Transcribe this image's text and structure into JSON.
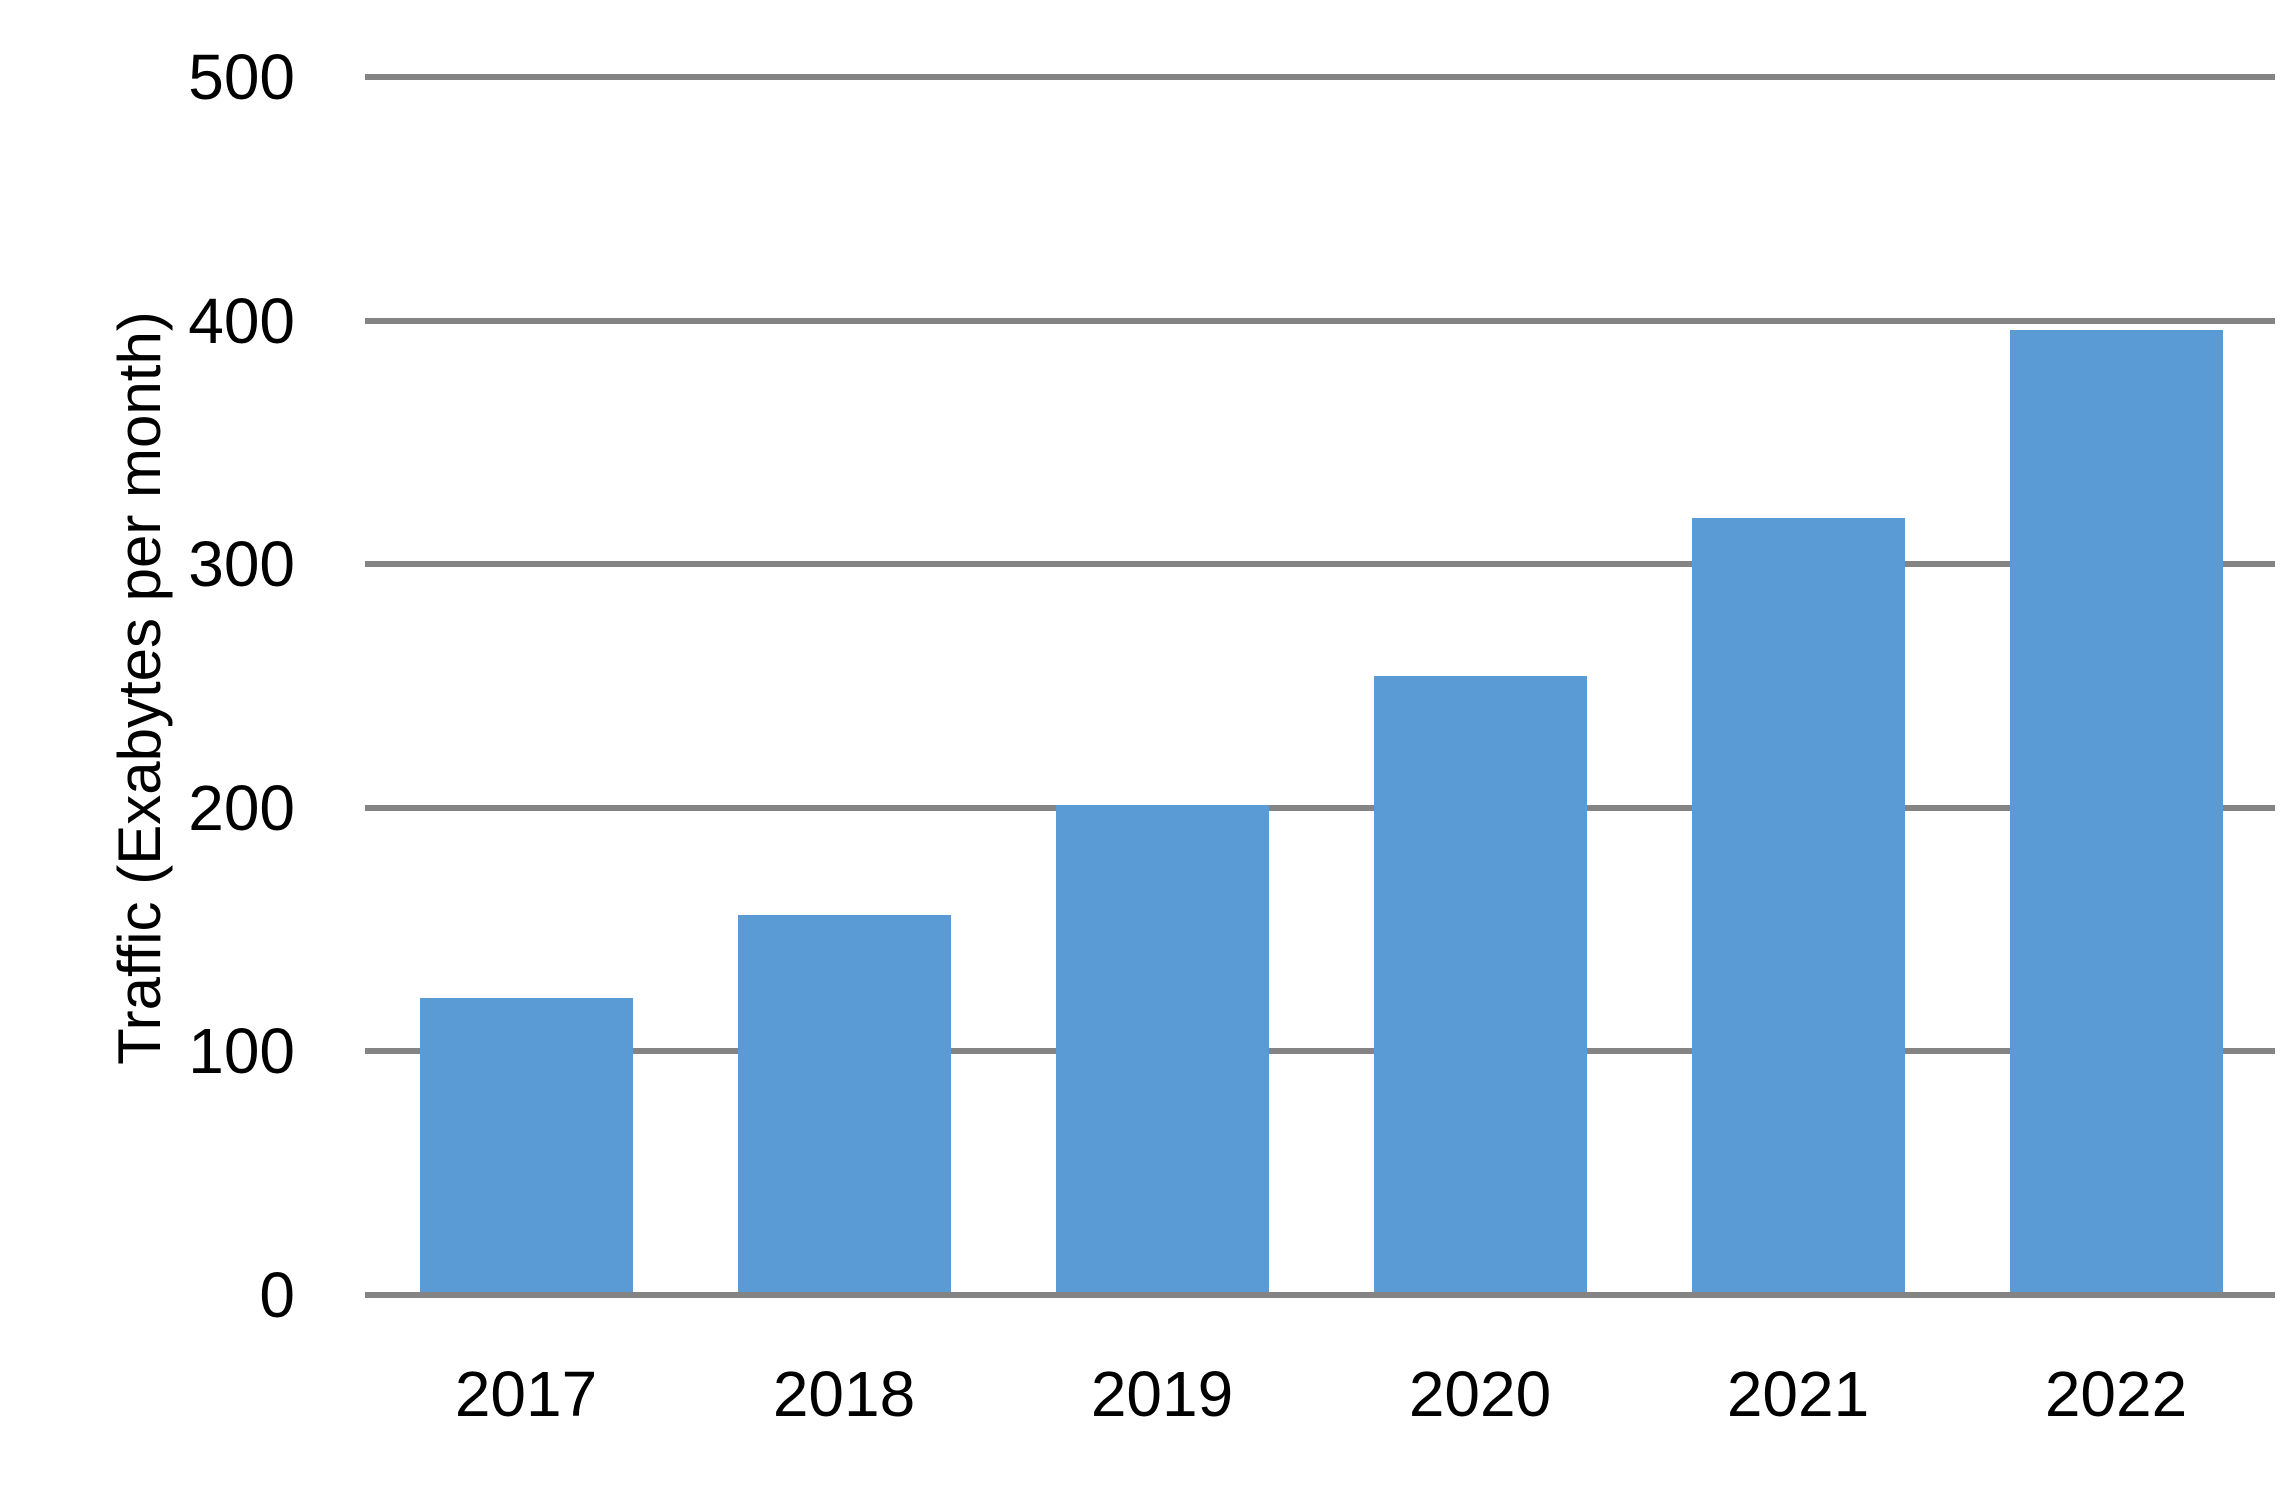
{
  "chart_data": {
    "type": "bar",
    "title": "",
    "categories": [
      "2017",
      "2018",
      "2019",
      "2020",
      "2021",
      "2022"
    ],
    "values": [
      122,
      156,
      201,
      254,
      319,
      396
    ],
    "series": [
      {
        "name": "Traffic",
        "values": [
          122,
          156,
          201,
          254,
          319,
          396
        ]
      }
    ],
    "xlabel": "",
    "ylabel": "Traffic (Exabytes per month)",
    "ylim": [
      0,
      500
    ],
    "yticks": [
      0,
      100,
      200,
      300,
      400,
      500
    ],
    "grid": "horizontal",
    "legend": "none",
    "colors": {
      "bar": "#5B9BD5",
      "gridline": "#848484",
      "text": "#000000",
      "background": "#FFFFFF"
    }
  }
}
